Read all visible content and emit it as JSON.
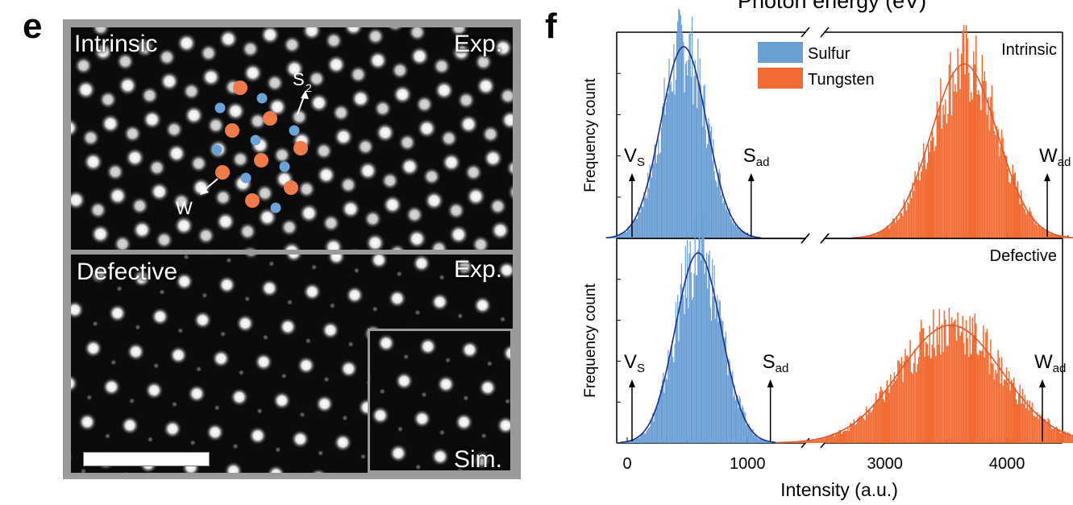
{
  "panel_e": {
    "letter": "e",
    "intrinsic_label": "Intrinsic",
    "defective_label": "Defective",
    "exp_label": "Exp.",
    "sim_label": "Sim.",
    "s2_label": "S",
    "s2_sub": "2",
    "w_label": "W",
    "colors": {
      "sulfur_marker": "#6aa3d6",
      "tungsten_marker": "#f07a48"
    }
  },
  "panel_f": {
    "letter": "f",
    "top_cut_label": "Photon energy (eV)"
  },
  "chart_data": {
    "type": "bar",
    "subtype": "histogram",
    "xlabel": "Intensity (a.u.)",
    "ylabel": "Frequency count",
    "x_ticks": [
      "0",
      "1000",
      "3000",
      "4000"
    ],
    "x_axis_break": "between 1500 and 2500",
    "legend": {
      "placement": "top-center",
      "entries": [
        "Sulfur",
        "Tungsten"
      ]
    },
    "colors": {
      "sulfur": "#6a9fd4",
      "tungsten": "#f26b33",
      "fit": "#1c2f8a"
    },
    "panels": [
      {
        "label": "Intrinsic",
        "series": [
          {
            "name": "Sulfur",
            "fit": "gaussian",
            "center": 470,
            "sigma": 190,
            "peak": 1.0
          },
          {
            "name": "Tungsten",
            "fit": "gaussian",
            "center": 3650,
            "sigma": 270,
            "peak": 0.91
          }
        ],
        "annotations": [
          {
            "text": "V",
            "sub": "S",
            "x": 40
          },
          {
            "text": "S",
            "sub": "ad",
            "x": 1030
          },
          {
            "text": "W",
            "sub": "ad",
            "x": 4330
          }
        ]
      },
      {
        "label": "Defective",
        "series": [
          {
            "name": "Sulfur",
            "fit": "gaussian",
            "center": 590,
            "sigma": 190,
            "peak": 1.0
          },
          {
            "name": "Tungsten",
            "fit": "gaussian",
            "center": 3540,
            "sigma": 420,
            "peak": 0.62
          }
        ],
        "annotations": [
          {
            "text": "V",
            "sub": "S",
            "x": 40
          },
          {
            "text": "S",
            "sub": "ad",
            "x": 1190
          },
          {
            "text": "W",
            "sub": "ad",
            "x": 4290
          }
        ]
      }
    ]
  }
}
